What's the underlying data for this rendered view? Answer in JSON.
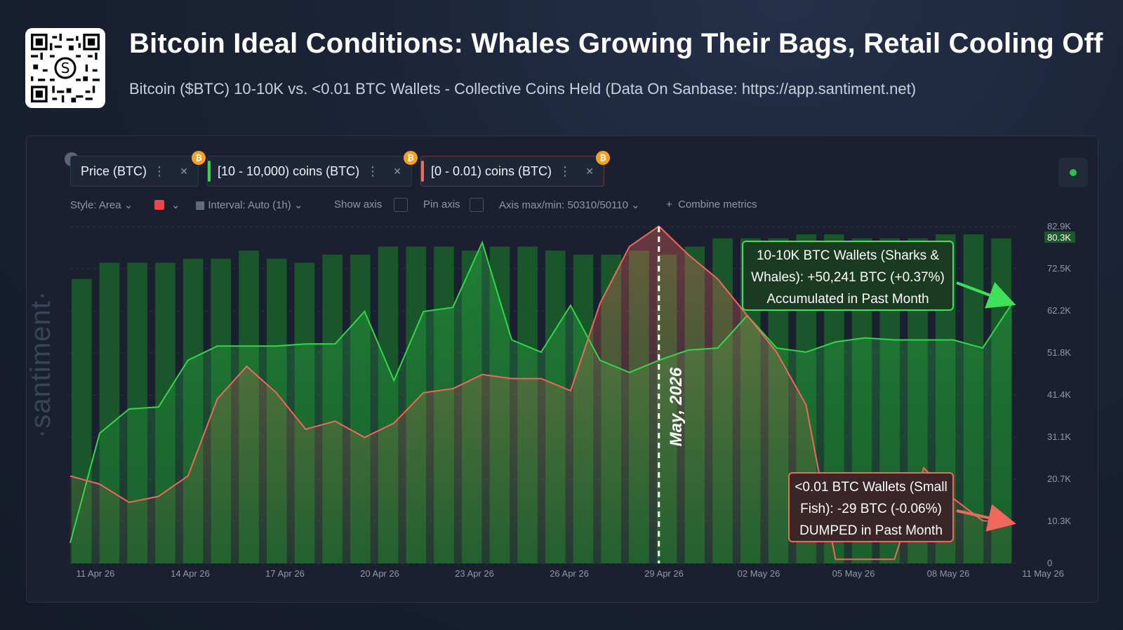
{
  "header": {
    "title": "Bitcoin Ideal Conditions: Whales Growing Their Bags, Retail Cooling Off",
    "subtitle": "Bitcoin ($BTC) 10-10K vs. <0.01 BTC Wallets - Collective Coins Held (Data On Sanbase: https://app.santiment.net)"
  },
  "metrics": [
    {
      "label": "Price (BTC)",
      "color": "#1f2637"
    },
    {
      "label": "[10 - 10,000) coins (BTC)",
      "color": "#35d64a"
    },
    {
      "label": "[0 - 0.01) coins (BTC)",
      "color": "#f0675e"
    }
  ],
  "toolbar": {
    "style": "Style: Area",
    "interval": "Interval: Auto (1h)",
    "show_axis": "Show axis",
    "pin_axis": "Pin axis",
    "axis_maxmin": "Axis max/min: 50310/50110",
    "combine": "Combine metrics"
  },
  "watermark": "·santiment·",
  "chart_data": {
    "type": "line",
    "x_ticks": [
      "11 Apr 26",
      "14 Apr 26",
      "17 Apr 26",
      "20 Apr 26",
      "23 Apr 26",
      "26 Apr 26",
      "29 Apr 26",
      "02 May 26",
      "05 May 26",
      "08 May 26",
      "11 May 26"
    ],
    "y_ticks": [
      "82.9K",
      "72.5K",
      "62.2K",
      "51.8K",
      "41.4K",
      "31.1K",
      "20.7K",
      "10.3K",
      "0"
    ],
    "y_highlight": "80.3K",
    "ylim": [
      0,
      82900
    ],
    "vline_label": "May, 2026",
    "vline_index": 20,
    "bars": [
      70,
      74,
      74,
      74,
      75,
      75,
      77,
      75,
      74,
      76,
      76,
      78,
      78,
      78,
      77,
      78,
      78,
      77,
      76,
      76,
      77,
      76,
      78,
      80,
      80,
      80,
      81,
      81,
      80,
      80,
      80,
      81,
      81,
      80
    ],
    "series": [
      {
        "name": "10-10K BTC Wallets (Sharks & Whales)",
        "color": "#35d64a",
        "values": [
          5,
          32,
          38,
          38.5,
          50,
          53.5,
          53.5,
          53.5,
          54,
          54,
          62,
          45,
          62,
          63,
          79,
          55,
          52,
          63.5,
          50,
          47,
          50,
          52.5,
          53,
          61,
          53,
          52,
          54.5,
          55.5,
          55,
          55,
          55,
          53,
          64
        ]
      },
      {
        "name": "<0.01 BTC Wallets (Small Fish)",
        "color": "#f0675e",
        "values": [
          21.5,
          19.5,
          15,
          16.5,
          21.5,
          40.5,
          48.5,
          42,
          33,
          35,
          31,
          34.5,
          42,
          43,
          46.5,
          45.5,
          45.5,
          42.5,
          64,
          78,
          83,
          76,
          70,
          61,
          52,
          39,
          1,
          1,
          1,
          23.5,
          16,
          10.5,
          10
        ]
      }
    ],
    "annotations": [
      {
        "lines": [
          "10-10K BTC Wallets (Sharks &",
          "Whales): +50,241 BTC (+0.37%)",
          "Accumulated in Past Month"
        ]
      },
      {
        "lines": [
          "<0.01 BTC Wallets (Small",
          "Fish): -29 BTC (-0.06%)",
          "DUMPED in Past Month"
        ]
      }
    ]
  }
}
